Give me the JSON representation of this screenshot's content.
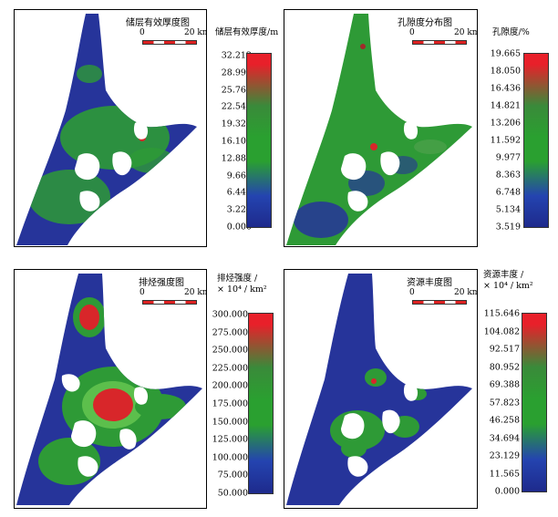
{
  "scale": {
    "zero": "0",
    "distance": "20 km"
  },
  "panels": [
    {
      "id": "thickness",
      "title": "储层有效厚度图",
      "legend_title_line1": "储层有效厚度/m",
      "legend_title_line2": "",
      "ticks": [
        "32.212",
        "28.991",
        "25.769",
        "22.548",
        "19.327",
        "16.106",
        "12.885",
        "9.664",
        "6.442",
        "3.221",
        "0.000"
      ],
      "colors": {
        "top": "#e8202a",
        "mid": "#2aa030",
        "low": "#2444b0",
        "bottom": "#1e2a8c"
      }
    },
    {
      "id": "porosity",
      "title": "孔隙度分布图",
      "legend_title_line1": "孔隙度/%",
      "legend_title_line2": "",
      "ticks": [
        "19.665",
        "18.050",
        "16.436",
        "14.821",
        "13.206",
        "11.592",
        "9.977",
        "8.363",
        "6.748",
        "5.134",
        "3.519"
      ],
      "colors": {
        "top": "#e8202a",
        "mid": "#2aa030",
        "low": "#2444b0",
        "bottom": "#1e2a8c"
      }
    },
    {
      "id": "expulsion",
      "title": "排烃强度图",
      "legend_title_line1": "排烃强度 /",
      "legend_title_line2": "× 10⁴ / km²",
      "ticks": [
        "300.000",
        "275.000",
        "250.000",
        "225.000",
        "200.000",
        "175.000",
        "150.000",
        "125.000",
        "100.000",
        "75.000",
        "50.000"
      ],
      "colors": {
        "top": "#e8202a",
        "mid": "#2aa030",
        "low": "#2444b0",
        "bottom": "#1e2a8c"
      }
    },
    {
      "id": "abundance",
      "title": "资源丰度图",
      "legend_title_line1": "资源丰度 /",
      "legend_title_line2": "× 10⁴ / km²",
      "ticks": [
        "115.646",
        "104.082",
        "92.517",
        "80.952",
        "69.388",
        "57.823",
        "46.258",
        "34.694",
        "23.129",
        "11.565",
        "0.000"
      ],
      "colors": {
        "top": "#e8202a",
        "mid": "#2aa030",
        "low": "#2444b0",
        "bottom": "#1e2a8c"
      }
    }
  ]
}
